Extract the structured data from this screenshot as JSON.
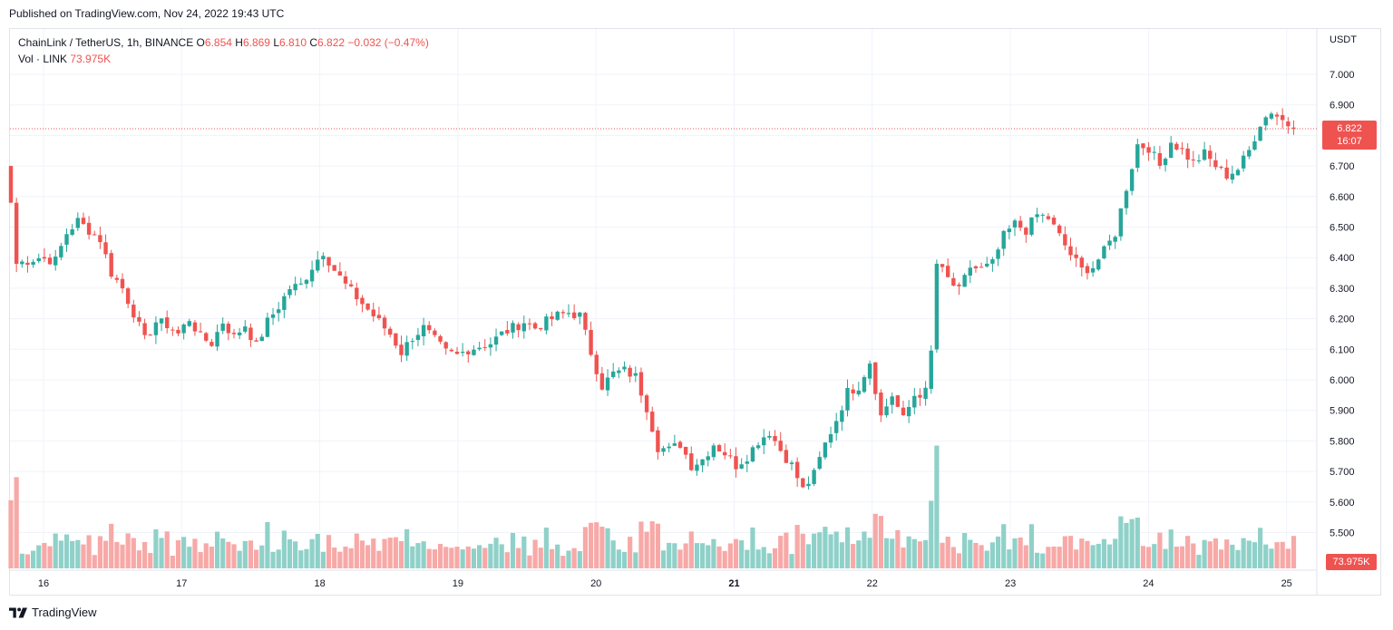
{
  "header": {
    "published": "Published on TradingView.com, Nov 24, 2022 19:43 UTC"
  },
  "legend": {
    "symbol": "ChainLink / TetherUS, 1h, BINANCE",
    "o_label": "O",
    "o_value": "6.854",
    "h_label": "H",
    "h_value": "6.869",
    "l_label": "L",
    "l_value": "6.810",
    "c_label": "C",
    "c_value": "6.822",
    "change": "−0.032 (−0.47%)",
    "vol_label": "Vol · LINK",
    "vol_value": "73.975K"
  },
  "axis": {
    "currency": "USDT",
    "last_price": "6.822",
    "countdown": "16:07",
    "last_volume": "73.975K"
  },
  "footer": {
    "brand": "TradingView"
  },
  "colors": {
    "up": "#26a69a",
    "down": "#ef5350",
    "up_vol": "#8fd1c9",
    "down_vol": "#f7a9a7",
    "grid": "#f0f3fa"
  },
  "chart_data": {
    "type": "candlestick",
    "title": "ChainLink / TetherUS, 1h, BINANCE",
    "ylabel": "USDT",
    "ylim": [
      5.4,
      7.1
    ],
    "yticks": [
      "7.000",
      "6.900",
      "6.800",
      "6.700",
      "6.600",
      "6.500",
      "6.400",
      "6.300",
      "6.200",
      "6.100",
      "6.000",
      "5.900",
      "5.800",
      "5.700",
      "5.600",
      "5.500"
    ],
    "x_labels": [
      "16",
      "17",
      "18",
      "19",
      "20",
      "21",
      "22",
      "23",
      "24",
      "25"
    ],
    "bold_x_label": "21",
    "close_anchors": [
      [
        0,
        6.58
      ],
      [
        1,
        6.38
      ],
      [
        5,
        6.4
      ],
      [
        8,
        6.39
      ],
      [
        10,
        6.48
      ],
      [
        12,
        6.52
      ],
      [
        14,
        6.49
      ],
      [
        16,
        6.46
      ],
      [
        18,
        6.35
      ],
      [
        20,
        6.3
      ],
      [
        22,
        6.22
      ],
      [
        24,
        6.13
      ],
      [
        26,
        6.19
      ],
      [
        28,
        6.18
      ],
      [
        30,
        6.15
      ],
      [
        32,
        6.2
      ],
      [
        34,
        6.14
      ],
      [
        36,
        6.12
      ],
      [
        38,
        6.19
      ],
      [
        40,
        6.14
      ],
      [
        42,
        6.18
      ],
      [
        44,
        6.11
      ],
      [
        46,
        6.19
      ],
      [
        48,
        6.24
      ],
      [
        50,
        6.3
      ],
      [
        52,
        6.31
      ],
      [
        54,
        6.37
      ],
      [
        56,
        6.42
      ],
      [
        58,
        6.36
      ],
      [
        60,
        6.31
      ],
      [
        62,
        6.27
      ],
      [
        64,
        6.23
      ],
      [
        66,
        6.19
      ],
      [
        68,
        6.15
      ],
      [
        70,
        6.09
      ],
      [
        72,
        6.14
      ],
      [
        74,
        6.17
      ],
      [
        76,
        6.13
      ],
      [
        78,
        6.09
      ],
      [
        80,
        6.08
      ],
      [
        82,
        6.1
      ],
      [
        84,
        6.11
      ],
      [
        86,
        6.12
      ],
      [
        88,
        6.15
      ],
      [
        90,
        6.17
      ],
      [
        92,
        6.19
      ],
      [
        94,
        6.17
      ],
      [
        96,
        6.19
      ],
      [
        98,
        6.21
      ],
      [
        100,
        6.22
      ],
      [
        102,
        6.21
      ],
      [
        104,
        6.09
      ],
      [
        106,
        5.98
      ],
      [
        108,
        6.02
      ],
      [
        110,
        6.03
      ],
      [
        112,
        6.01
      ],
      [
        114,
        5.91
      ],
      [
        116,
        5.78
      ],
      [
        118,
        5.77
      ],
      [
        120,
        5.79
      ],
      [
        122,
        5.72
      ],
      [
        124,
        5.74
      ],
      [
        126,
        5.79
      ],
      [
        128,
        5.76
      ],
      [
        130,
        5.72
      ],
      [
        132,
        5.75
      ],
      [
        134,
        5.8
      ],
      [
        136,
        5.83
      ],
      [
        138,
        5.77
      ],
      [
        140,
        5.72
      ],
      [
        142,
        5.64
      ],
      [
        144,
        5.69
      ],
      [
        146,
        5.79
      ],
      [
        148,
        5.87
      ],
      [
        150,
        5.96
      ],
      [
        152,
        5.98
      ],
      [
        154,
        6.06
      ],
      [
        156,
        5.88
      ],
      [
        158,
        5.95
      ],
      [
        160,
        5.87
      ],
      [
        162,
        5.95
      ],
      [
        164,
        5.96
      ],
      [
        165,
        6.09
      ],
      [
        166,
        6.38
      ],
      [
        168,
        6.33
      ],
      [
        170,
        6.29
      ],
      [
        172,
        6.37
      ],
      [
        174,
        6.36
      ],
      [
        176,
        6.38
      ],
      [
        178,
        6.47
      ],
      [
        180,
        6.51
      ],
      [
        182,
        6.49
      ],
      [
        184,
        6.54
      ],
      [
        186,
        6.53
      ],
      [
        188,
        6.47
      ],
      [
        190,
        6.41
      ],
      [
        192,
        6.36
      ],
      [
        194,
        6.37
      ],
      [
        196,
        6.42
      ],
      [
        198,
        6.48
      ],
      [
        200,
        6.63
      ],
      [
        202,
        6.77
      ],
      [
        204,
        6.76
      ],
      [
        206,
        6.7
      ],
      [
        208,
        6.78
      ],
      [
        210,
        6.75
      ],
      [
        212,
        6.71
      ],
      [
        214,
        6.74
      ],
      [
        216,
        6.7
      ],
      [
        218,
        6.67
      ],
      [
        220,
        6.69
      ],
      [
        222,
        6.75
      ],
      [
        224,
        6.84
      ],
      [
        226,
        6.88
      ],
      [
        228,
        6.85
      ],
      [
        230,
        6.822
      ]
    ],
    "volume_max_k": 310,
    "last_volume_k": 73.975
  }
}
